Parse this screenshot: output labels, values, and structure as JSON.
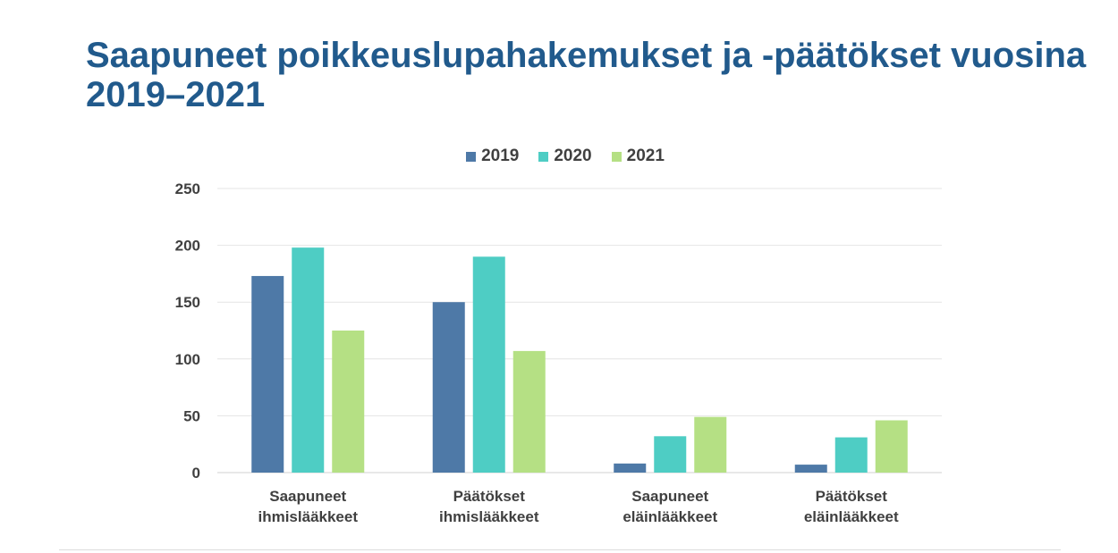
{
  "title": "Saapuneet poikkeuslupahakemukset ja -päätökset vuosina 2019–2021",
  "legend": [
    {
      "label": "2019",
      "color": "#4e79a7"
    },
    {
      "label": "2020",
      "color": "#4ecdc4"
    },
    {
      "label": "2021",
      "color": "#b5e084"
    }
  ],
  "chart_data": {
    "type": "bar",
    "title": "Saapuneet poikkeuslupahakemukset ja -päätökset vuosina 2019–2021",
    "xlabel": "",
    "ylabel": "",
    "ylim": [
      0,
      250
    ],
    "yticks": [
      0,
      50,
      100,
      150,
      200,
      250
    ],
    "grid": true,
    "legend_position": "top-center",
    "categories": [
      [
        "Saapuneet",
        "ihmislääkkeet"
      ],
      [
        "Päätökset",
        "ihmislääkkeet"
      ],
      [
        "Saapuneet",
        "eläinlääkkeet"
      ],
      [
        "Päätökset",
        "eläinlääkkeet"
      ]
    ],
    "series": [
      {
        "name": "2019",
        "color": "#4e79a7",
        "values": [
          173,
          150,
          8,
          7
        ]
      },
      {
        "name": "2020",
        "color": "#4ecdc4",
        "values": [
          198,
          190,
          32,
          31
        ]
      },
      {
        "name": "2021",
        "color": "#b5e084",
        "values": [
          125,
          107,
          49,
          46
        ]
      }
    ]
  }
}
